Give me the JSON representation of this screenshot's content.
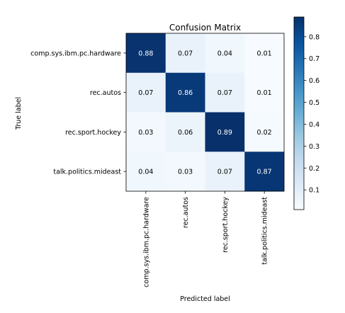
{
  "chart_data": {
    "type": "heatmap",
    "title": "Confusion Matrix",
    "xlabel": "Predicted label",
    "ylabel": "True label",
    "row_labels": [
      "comp.sys.ibm.pc.hardware",
      "rec.autos",
      "rec.sport.hockey",
      "talk.politics.mideast"
    ],
    "col_labels": [
      "comp.sys.ibm.pc.hardware",
      "rec.autos",
      "rec.sport.hockey",
      "talk.politics.mideast"
    ],
    "values": [
      [
        0.88,
        0.07,
        0.04,
        0.01
      ],
      [
        0.07,
        0.86,
        0.07,
        0.01
      ],
      [
        0.03,
        0.06,
        0.89,
        0.02
      ],
      [
        0.04,
        0.03,
        0.07,
        0.87
      ]
    ],
    "cell_labels": [
      [
        "0.88",
        "0.07",
        "0.04",
        "0.01"
      ],
      [
        "0.07",
        "0.86",
        "0.07",
        "0.01"
      ],
      [
        "0.03",
        "0.06",
        "0.89",
        "0.02"
      ],
      [
        "0.04",
        "0.03",
        "0.07",
        "0.87"
      ]
    ],
    "colorbar": {
      "colormap": "Blues",
      "range": [
        0.01,
        0.89
      ],
      "ticks": [
        0.1,
        0.2,
        0.3,
        0.4,
        0.5,
        0.6,
        0.7,
        0.8
      ],
      "tick_labels": [
        "0.1",
        "0.2",
        "0.3",
        "0.4",
        "0.5",
        "0.6",
        "0.7",
        "0.8"
      ],
      "low_color": "#f7fbff",
      "high_color": "#08306b"
    },
    "cell_text_dark": "#000000",
    "cell_text_light": "#ffffff"
  }
}
